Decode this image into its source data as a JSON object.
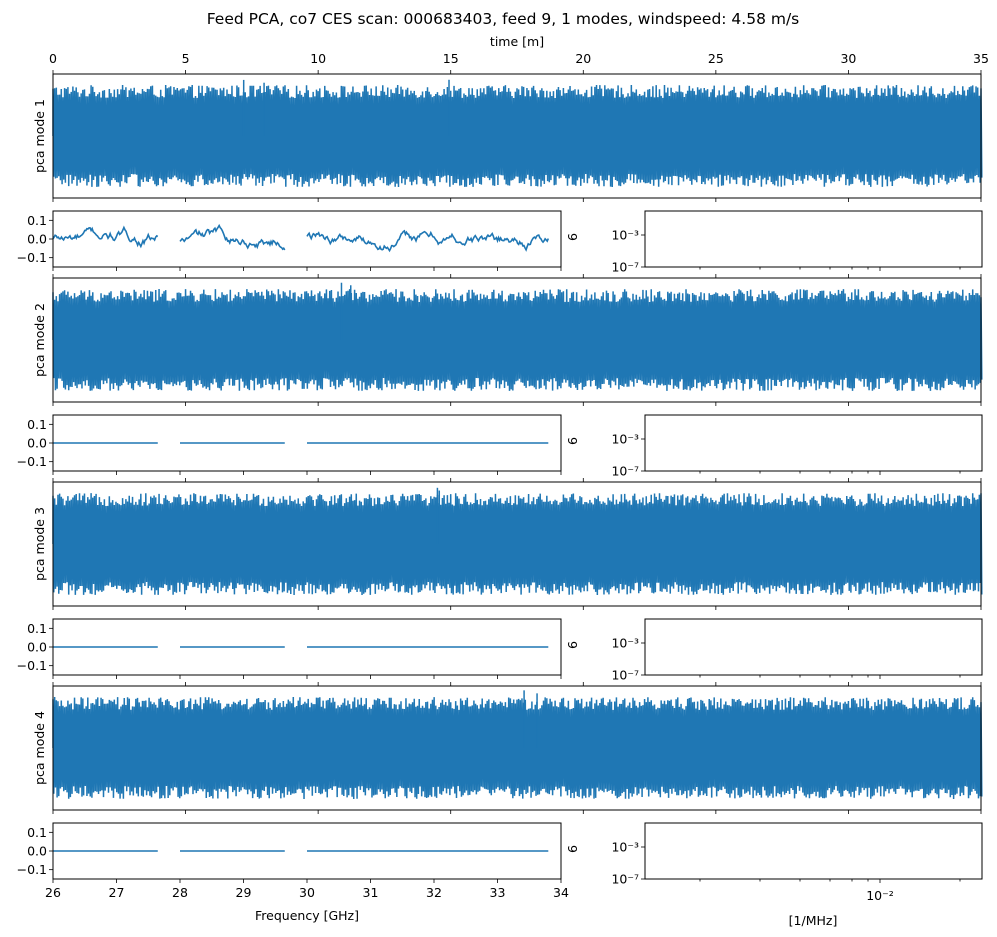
{
  "chart_data": {
    "type": "line",
    "title": "Feed PCA, co7 CES scan: 000683403, feed 9, 1 modes, windspeed: 4.58 m/s",
    "time_axis": {
      "label": "time [m]",
      "range": [
        0,
        35
      ],
      "ticks": [
        "0",
        "5",
        "10",
        "15",
        "20",
        "25",
        "30",
        "35"
      ]
    },
    "series_color": "#1f77b4",
    "modes": [
      {
        "name": "pca mode 1",
        "amplitude_profile": "noise",
        "spikes": 3
      },
      {
        "name": "pca mode 2",
        "amplitude_profile": "noise",
        "spikes": 2
      },
      {
        "name": "pca mode 3",
        "amplitude_profile": "noise",
        "spikes": 2
      },
      {
        "name": "pca mode 4",
        "amplitude_profile": "noise",
        "spikes": 2
      }
    ],
    "frequency_panels": [
      {
        "ylim": [
          -0.15,
          0.15
        ],
        "yticks": [
          "0.1",
          "0.0",
          "−0.1"
        ],
        "pattern": "wavy"
      },
      {
        "ylim": [
          -0.15,
          0.15
        ],
        "yticks": [
          "0.1",
          "0.0",
          "−0.1"
        ],
        "pattern": "flat"
      },
      {
        "ylim": [
          -0.15,
          0.15
        ],
        "yticks": [
          "0.1",
          "0.0",
          "−0.1"
        ],
        "pattern": "flat"
      },
      {
        "ylim": [
          -0.15,
          0.15
        ],
        "yticks": [
          "0.1",
          "0.0",
          "−0.1"
        ],
        "pattern": "flat"
      }
    ],
    "frequency_axis": {
      "label": "Frequency [GHz]",
      "range": [
        26,
        34
      ],
      "ticks": [
        "26",
        "27",
        "28",
        "29",
        "30",
        "31",
        "32",
        "33",
        "34"
      ],
      "segments": [
        [
          26.0,
          27.65
        ],
        [
          28.0,
          29.65
        ],
        [
          30.0,
          33.8
        ]
      ]
    },
    "mid_label": "9",
    "spectrum_panels": {
      "yticks": [
        "10⁻³",
        "10⁻⁷"
      ],
      "xlabel": "[1/MHz]",
      "xtick": "10⁻²"
    }
  }
}
